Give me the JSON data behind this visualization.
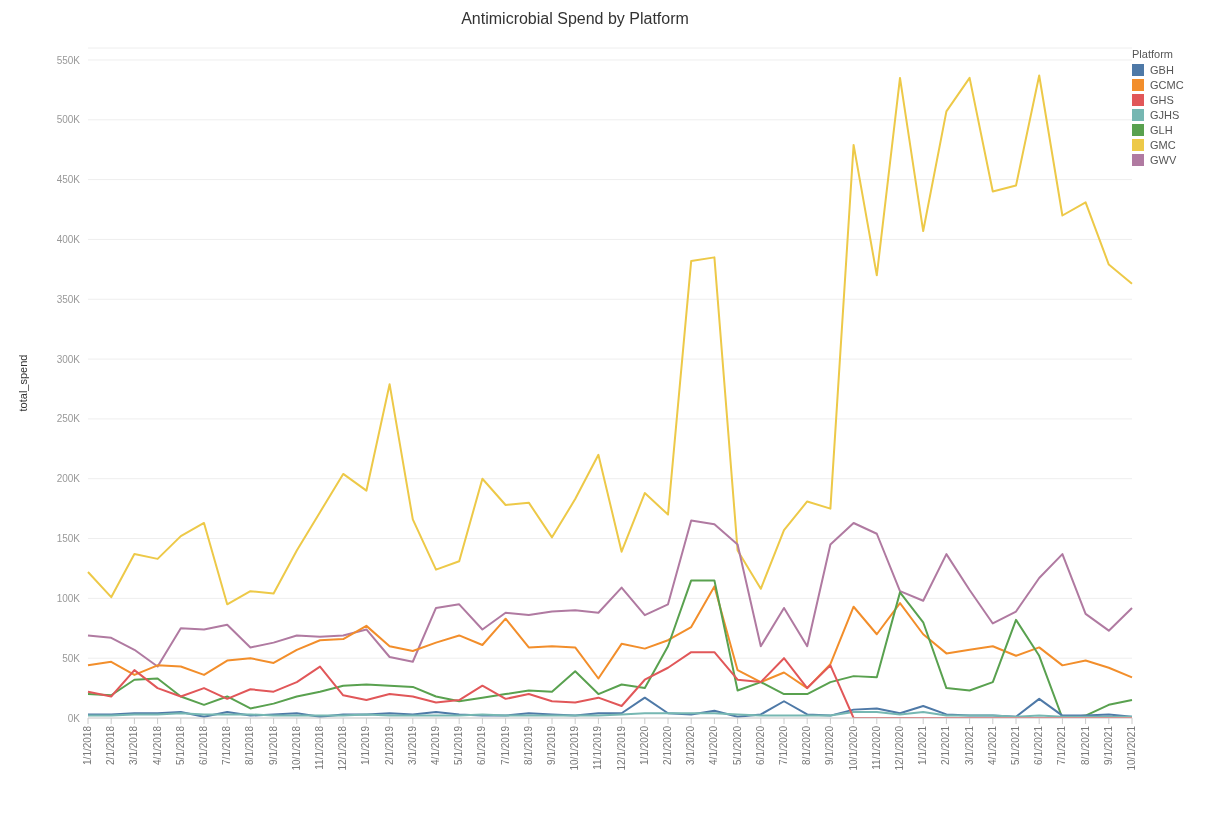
{
  "chart_data": {
    "type": "line",
    "title": "Antimicrobial Spend by Platform",
    "ylabel": "total_spend",
    "legend_title": "Platform",
    "legend": "top right",
    "grid": "y",
    "marker": "none",
    "categories": [
      "1/1/2018",
      "2/1/2018",
      "3/1/2018",
      "4/1/2018",
      "5/1/2018",
      "6/1/2018",
      "7/1/2018",
      "8/1/2018",
      "9/1/2018",
      "10/1/2018",
      "11/1/2018",
      "12/1/2018",
      "1/1/2019",
      "2/1/2019",
      "3/1/2019",
      "4/1/2019",
      "5/1/2019",
      "6/1/2019",
      "7/1/2019",
      "8/1/2019",
      "9/1/2019",
      "10/1/2019",
      "11/1/2019",
      "12/1/2019",
      "1/1/2020",
      "2/1/2020",
      "3/1/2020",
      "4/1/2020",
      "5/1/2020",
      "6/1/2020",
      "7/1/2020",
      "8/1/2020",
      "9/1/2020",
      "10/1/2020",
      "11/1/2020",
      "12/1/2020",
      "1/1/2021",
      "2/1/2021",
      "3/1/2021",
      "4/1/2021",
      "5/1/2021",
      "6/1/2021",
      "7/1/2021",
      "8/1/2021",
      "9/1/2021",
      "10/1/2021"
    ],
    "ylim": [
      0,
      560000
    ],
    "yticks": [
      {
        "value": 0,
        "label": "0K"
      },
      {
        "value": 50000,
        "label": "50K"
      },
      {
        "value": 100000,
        "label": "100K"
      },
      {
        "value": 150000,
        "label": "150K"
      },
      {
        "value": 200000,
        "label": "200K"
      },
      {
        "value": 250000,
        "label": "250K"
      },
      {
        "value": 300000,
        "label": "300K"
      },
      {
        "value": 350000,
        "label": "350K"
      },
      {
        "value": 400000,
        "label": "400K"
      },
      {
        "value": 450000,
        "label": "450K"
      },
      {
        "value": 500000,
        "label": "500K"
      },
      {
        "value": 550000,
        "label": "550K"
      }
    ],
    "series": [
      {
        "name": "GBH",
        "color": "#4e79a7",
        "values": [
          3000,
          3000,
          4000,
          4000,
          5000,
          1000,
          5000,
          2000,
          3000,
          4000,
          1000,
          3000,
          3000,
          4000,
          3000,
          5000,
          3000,
          2000,
          2000,
          4000,
          3000,
          2000,
          4000,
          4000,
          17000,
          4000,
          3000,
          6000,
          1000,
          3000,
          14000,
          3000,
          2000,
          7000,
          8000,
          4000,
          10000,
          3000,
          2000,
          2000,
          1000,
          16000,
          2000,
          2000,
          3000,
          1000
        ]
      },
      {
        "name": "GCMC",
        "color": "#f28e2b",
        "values": [
          44000,
          47000,
          36000,
          44000,
          43000,
          36000,
          48000,
          50000,
          46000,
          57000,
          65000,
          66000,
          77000,
          60000,
          56000,
          63000,
          69000,
          61000,
          83000,
          59000,
          60000,
          59000,
          33000,
          62000,
          58000,
          65000,
          76000,
          110000,
          40000,
          30000,
          38000,
          25000,
          45000,
          93000,
          70000,
          96000,
          70000,
          54000,
          57000,
          60000,
          52000,
          59000,
          44000,
          48000,
          42000,
          34000
        ]
      },
      {
        "name": "GHS",
        "color": "#e15759",
        "values": [
          22000,
          18000,
          40000,
          25000,
          18000,
          25000,
          16000,
          24000,
          22000,
          30000,
          43000,
          19000,
          15000,
          20000,
          18000,
          13000,
          15000,
          27000,
          16000,
          20000,
          14000,
          13000,
          17000,
          10000,
          32000,
          42000,
          55000,
          55000,
          32000,
          30000,
          50000,
          25000,
          44000,
          0,
          0,
          0,
          0,
          0,
          0,
          0,
          0,
          0,
          0,
          0,
          0,
          0
        ]
      },
      {
        "name": "GJHS",
        "color": "#76b7b2",
        "values": [
          2000,
          2000,
          3000,
          3000,
          4000,
          3000,
          3000,
          3000,
          2000,
          2000,
          2000,
          2000,
          3000,
          2000,
          2000,
          2000,
          2000,
          3000,
          2000,
          2000,
          2000,
          2000,
          2000,
          3000,
          4000,
          4000,
          4000,
          4000,
          3000,
          2000,
          2000,
          2000,
          2000,
          5000,
          5000,
          3000,
          5000,
          2000,
          2000,
          2000,
          1000,
          2000,
          1000,
          1000,
          1000,
          1000
        ]
      },
      {
        "name": "GLH",
        "color": "#59a14f",
        "values": [
          20000,
          19000,
          32000,
          33000,
          18000,
          11000,
          18000,
          8000,
          12000,
          18000,
          22000,
          27000,
          28000,
          27000,
          26000,
          18000,
          14000,
          17000,
          20000,
          23000,
          22000,
          39000,
          20000,
          28000,
          25000,
          60000,
          115000,
          115000,
          23000,
          30000,
          20000,
          20000,
          30000,
          35000,
          34000,
          105000,
          80000,
          25000,
          23000,
          30000,
          82000,
          52000,
          0,
          2000,
          11000,
          15000
        ]
      },
      {
        "name": "GMC",
        "color": "#edc948",
        "values": [
          122000,
          101000,
          137000,
          133000,
          152000,
          163000,
          95000,
          106000,
          104000,
          140000,
          172000,
          204000,
          190000,
          279000,
          166000,
          124000,
          131000,
          200000,
          178000,
          180000,
          151000,
          183000,
          220000,
          139000,
          188000,
          170000,
          382000,
          385000,
          140000,
          108000,
          157000,
          181000,
          175000,
          479000,
          370000,
          535000,
          407000,
          507000,
          535000,
          440000,
          445000,
          537000,
          420000,
          431000,
          379000,
          363000
        ]
      },
      {
        "name": "GWV",
        "color": "#b07aa1",
        "values": [
          69000,
          67000,
          57000,
          43000,
          75000,
          74000,
          78000,
          59000,
          63000,
          69000,
          68000,
          69000,
          74000,
          51000,
          47000,
          92000,
          95000,
          74000,
          88000,
          86000,
          89000,
          90000,
          88000,
          109000,
          86000,
          95000,
          165000,
          162000,
          145000,
          60000,
          92000,
          60000,
          145000,
          163000,
          154000,
          106000,
          98000,
          137000,
          107000,
          79000,
          89000,
          117000,
          137000,
          87000,
          73000,
          92000
        ]
      }
    ]
  }
}
